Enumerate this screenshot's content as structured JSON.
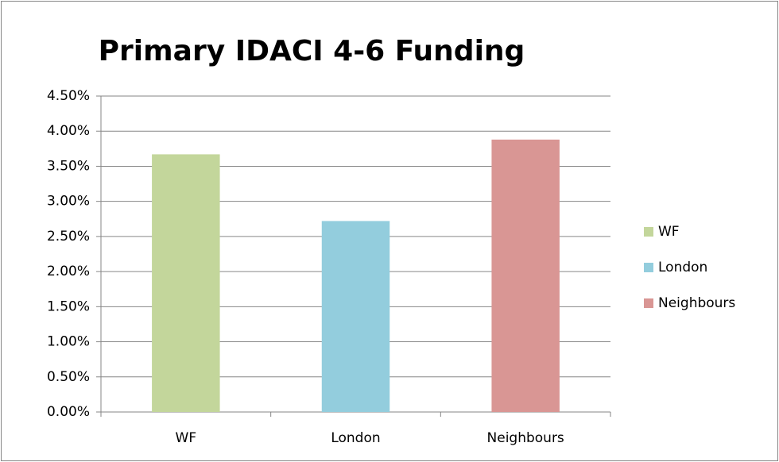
{
  "chart_data": {
    "type": "bar",
    "title": "Primary IDACI 4-6 Funding",
    "categories": [
      "WF",
      "London",
      "Neighbours"
    ],
    "values": [
      3.67,
      2.72,
      3.88
    ],
    "colors": [
      "#c3d69b",
      "#93cddd",
      "#d99694"
    ],
    "ylim": [
      0,
      4.5
    ],
    "yticks": [
      {
        "value": 0,
        "label": "0.00%"
      },
      {
        "value": 0.5,
        "label": "0.50%"
      },
      {
        "value": 1,
        "label": "1.00%"
      },
      {
        "value": 1.5,
        "label": "1.50%"
      },
      {
        "value": 2,
        "label": "2.00%"
      },
      {
        "value": 2.5,
        "label": "2.50%"
      },
      {
        "value": 3,
        "label": "3.00%"
      },
      {
        "value": 3.5,
        "label": "3.50%"
      },
      {
        "value": 4,
        "label": "4.00%"
      },
      {
        "value": 4.5,
        "label": "4.50%"
      }
    ],
    "grid": true,
    "legend": "right"
  }
}
